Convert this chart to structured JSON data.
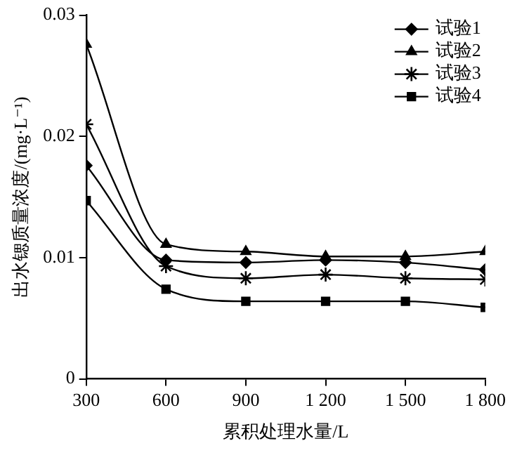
{
  "chart_data": {
    "type": "line",
    "xlabel": "累积处理水量/L",
    "ylabel": "出水锶质量浓度/(mg·L⁻¹)",
    "x": [
      300,
      600,
      900,
      1200,
      1500,
      1800
    ],
    "series": [
      {
        "name": "试验1",
        "color": "#000000",
        "marker": "diamond",
        "values": [
          0.0176,
          0.0098,
          0.0096,
          0.0098,
          0.0096,
          0.009
        ]
      },
      {
        "name": "试验2",
        "color": "#000000",
        "marker": "triangle",
        "values": [
          0.0276,
          0.0111,
          0.0105,
          0.0101,
          0.0101,
          0.0105
        ]
      },
      {
        "name": "试验3",
        "color": "#000000",
        "marker": "cross",
        "values": [
          0.021,
          0.0093,
          0.0083,
          0.0086,
          0.0083,
          0.0082
        ]
      },
      {
        "name": "试验4",
        "color": "#000000",
        "marker": "square",
        "values": [
          0.0147,
          0.0074,
          0.0064,
          0.0064,
          0.0064,
          0.0059
        ]
      }
    ],
    "xlim": [
      300,
      1800
    ],
    "xticks": [
      300,
      600,
      900,
      {
        "value": 1200,
        "label": "1 200"
      },
      {
        "value": 1500,
        "label": "1 500"
      },
      {
        "value": 1800,
        "label": "1 800"
      }
    ],
    "ylim": [
      0,
      0.03
    ],
    "yticks": [
      0,
      0.01,
      0.02,
      0.03
    ],
    "grid": false,
    "legend": "top right",
    "line_style": "solid"
  }
}
